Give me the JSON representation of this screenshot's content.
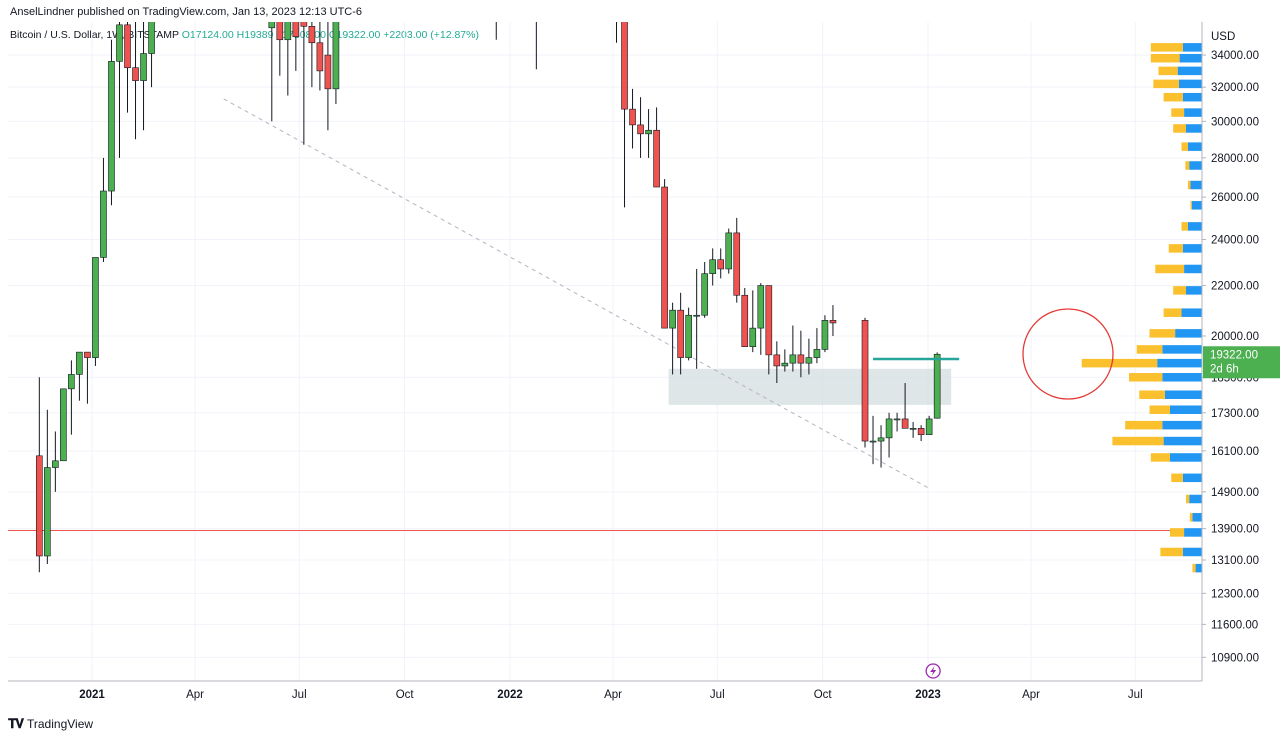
{
  "header": {
    "publisher": "AnselLindner published on TradingView.com, Jan 13, 2023 12:13 UTC-6",
    "symbol": "Bitcoin / U.S. Dollar, 1W, BITSTAMP",
    "open": "O17124.00",
    "high": "H19389",
    "low": "L17108.00",
    "close": "C19322.00",
    "change": "+2203.00 (+12.87%)"
  },
  "footer": {
    "brand": "TradingView"
  },
  "price_badge": {
    "price": "19322.00",
    "countdown": "2d 6h"
  },
  "currency": "USD",
  "colors": {
    "up": "#4caf50",
    "down": "#ef5350",
    "volume_up": "#2196f3",
    "volume_down": "#fbc02d",
    "support_line": "#ef5350",
    "current_line": "#26a69a",
    "zone": "#d1dbde",
    "circle": "#e53935",
    "badge": "#4caf50"
  },
  "chart_data": {
    "type": "candlestick",
    "symbol": "Bitcoin / U.S. Dollar",
    "interval": "1W",
    "exchange": "BITSTAMP",
    "scale": "log",
    "ylim": [
      10200,
      37500
    ],
    "y_ticks": [
      "34000.00",
      "32000.00",
      "30000.00",
      "28000.00",
      "26000.00",
      "24000.00",
      "22000.00",
      "20000.00",
      "18500.00",
      "17300.00",
      "16100.00",
      "14900.00",
      "13900.00",
      "13100.00",
      "12300.00",
      "11600.00",
      "10900.00"
    ],
    "x_ticks": [
      {
        "label": "2021",
        "bold": true
      },
      {
        "label": "Apr",
        "bold": false
      },
      {
        "label": "Jul",
        "bold": false
      },
      {
        "label": "Oct",
        "bold": false
      },
      {
        "label": "2022",
        "bold": true
      },
      {
        "label": "Apr",
        "bold": false
      },
      {
        "label": "Jul",
        "bold": false
      },
      {
        "label": "Oct",
        "bold": false
      },
      {
        "label": "2023",
        "bold": true
      },
      {
        "label": "Apr",
        "bold": false
      },
      {
        "label": "Jul",
        "bold": false
      }
    ],
    "candles": [
      {
        "date": "2020-11-16",
        "o": 15950,
        "h": 18500,
        "l": 12800,
        "c": 13200
      },
      {
        "date": "2020-11-23",
        "o": 13200,
        "h": 17400,
        "l": 13000,
        "c": 15600
      },
      {
        "date": "2020-11-30",
        "o": 15600,
        "h": 16700,
        "l": 14900,
        "c": 15800
      },
      {
        "date": "2020-12-07",
        "o": 15800,
        "h": 18100,
        "l": 16000,
        "c": 18100
      },
      {
        "date": "2020-12-14",
        "o": 18100,
        "h": 19100,
        "l": 16600,
        "c": 18600
      },
      {
        "date": "2020-12-21",
        "o": 18600,
        "h": 19400,
        "l": 17700,
        "c": 19400
      },
      {
        "date": "2020-12-28",
        "o": 19400,
        "h": 19400,
        "l": 17600,
        "c": 19200
      },
      {
        "date": "2021-01-04",
        "o": 19200,
        "h": 23200,
        "l": 18900,
        "c": 23200
      },
      {
        "date": "2021-01-11",
        "o": 23200,
        "h": 28000,
        "l": 23000,
        "c": 26300
      },
      {
        "date": "2021-01-18",
        "o": 26300,
        "h": 35000,
        "l": 25600,
        "c": 33600
      },
      {
        "date": "2021-01-25",
        "o": 33600,
        "h": 38000,
        "l": 28000,
        "c": 36000
      },
      {
        "date": "2021-02-01",
        "o": 36000,
        "h": 38000,
        "l": 30500,
        "c": 33200
      },
      {
        "date": "2021-02-08",
        "o": 33200,
        "h": 38000,
        "l": 29000,
        "c": 32400
      },
      {
        "date": "2021-02-15",
        "o": 32400,
        "h": 38000,
        "l": 29500,
        "c": 34100
      },
      {
        "date": "2021-02-22",
        "o": 34100,
        "h": 38000,
        "l": 32000,
        "c": 38000
      },
      {
        "date": "2021-06-07",
        "o": 35800,
        "h": 38000,
        "l": 30000,
        "c": 36500
      },
      {
        "date": "2021-06-14",
        "o": 36500,
        "h": 38000,
        "l": 32700,
        "c": 35000
      },
      {
        "date": "2021-06-21",
        "o": 35000,
        "h": 38000,
        "l": 31500,
        "c": 36800
      },
      {
        "date": "2021-06-28",
        "o": 36800,
        "h": 38000,
        "l": 33000,
        "c": 35200
      },
      {
        "date": "2021-07-05",
        "o": 37000,
        "h": 38000,
        "l": 28700,
        "c": 35900
      },
      {
        "date": "2021-07-12",
        "o": 35900,
        "h": 38000,
        "l": 32000,
        "c": 34800
      },
      {
        "date": "2021-07-19",
        "o": 34800,
        "h": 38000,
        "l": 31800,
        "c": 33000
      },
      {
        "date": "2021-07-26",
        "o": 34000,
        "h": 38000,
        "l": 29500,
        "c": 31900
      },
      {
        "date": "2021-08-02",
        "o": 31900,
        "h": 38000,
        "l": 31000,
        "c": 38000
      },
      {
        "date": "2021-12-20",
        "o": 38000,
        "h": 38000,
        "l": 35000,
        "c": 38000
      },
      {
        "date": "2022-01-24",
        "o": 38000,
        "h": 38000,
        "l": 33100,
        "c": 38000
      },
      {
        "date": "2022-04-04",
        "o": 38000,
        "h": 38000,
        "l": 34800,
        "c": 36500
      },
      {
        "date": "2022-04-11",
        "o": 36500,
        "h": 36500,
        "l": 25500,
        "c": 30700
      },
      {
        "date": "2022-04-18",
        "o": 30700,
        "h": 31900,
        "l": 28500,
        "c": 29800
      },
      {
        "date": "2022-04-25",
        "o": 29800,
        "h": 31400,
        "l": 28000,
        "c": 29300
      },
      {
        "date": "2022-05-02",
        "o": 29300,
        "h": 30700,
        "l": 28000,
        "c": 29500
      },
      {
        "date": "2022-05-09",
        "o": 29500,
        "h": 30800,
        "l": 26500,
        "c": 26500
      },
      {
        "date": "2022-05-16",
        "o": 26500,
        "h": 26900,
        "l": 20300,
        "c": 20300
      },
      {
        "date": "2022-05-23",
        "o": 20300,
        "h": 21300,
        "l": 18600,
        "c": 21000
      },
      {
        "date": "2022-05-30",
        "o": 21000,
        "h": 21700,
        "l": 18600,
        "c": 19200
      },
      {
        "date": "2022-06-06",
        "o": 19200,
        "h": 21100,
        "l": 19100,
        "c": 20800
      },
      {
        "date": "2022-06-13",
        "o": 20800,
        "h": 22700,
        "l": 18800,
        "c": 20800
      },
      {
        "date": "2022-06-20",
        "o": 20800,
        "h": 23000,
        "l": 20700,
        "c": 22500
      },
      {
        "date": "2022-06-27",
        "o": 22500,
        "h": 23600,
        "l": 22000,
        "c": 23100
      },
      {
        "date": "2022-07-04",
        "o": 23100,
        "h": 23600,
        "l": 22300,
        "c": 22700
      },
      {
        "date": "2022-07-11",
        "o": 22700,
        "h": 24500,
        "l": 22500,
        "c": 24300
      },
      {
        "date": "2022-07-18",
        "o": 24300,
        "h": 25000,
        "l": 21300,
        "c": 21600
      },
      {
        "date": "2022-07-25",
        "o": 21600,
        "h": 21900,
        "l": 19600,
        "c": 19600
      },
      {
        "date": "2022-08-01",
        "o": 19600,
        "h": 21800,
        "l": 19400,
        "c": 20300
      },
      {
        "date": "2022-08-08",
        "o": 20300,
        "h": 22100,
        "l": 19300,
        "c": 22000
      },
      {
        "date": "2022-08-15",
        "o": 22000,
        "h": 22000,
        "l": 18600,
        "c": 19300
      },
      {
        "date": "2022-08-22",
        "o": 19300,
        "h": 19800,
        "l": 18300,
        "c": 18900
      },
      {
        "date": "2022-08-29",
        "o": 18900,
        "h": 19500,
        "l": 18700,
        "c": 19000
      },
      {
        "date": "2022-09-05",
        "o": 19000,
        "h": 20400,
        "l": 18700,
        "c": 19300
      },
      {
        "date": "2022-09-12",
        "o": 19300,
        "h": 20200,
        "l": 18500,
        "c": 19000
      },
      {
        "date": "2022-09-19",
        "o": 19000,
        "h": 19900,
        "l": 18600,
        "c": 19200
      },
      {
        "date": "2022-09-26",
        "o": 19200,
        "h": 20300,
        "l": 19000,
        "c": 19500
      },
      {
        "date": "2022-10-03",
        "o": 19500,
        "h": 20800,
        "l": 19400,
        "c": 20600
      },
      {
        "date": "2022-10-10",
        "o": 20600,
        "h": 21200,
        "l": 20000,
        "c": 20500
      },
      {
        "date": "2022-11-07",
        "o": 20600,
        "h": 20700,
        "l": 16200,
        "c": 16400
      },
      {
        "date": "2022-11-14",
        "o": 16400,
        "h": 17200,
        "l": 15700,
        "c": 16400
      },
      {
        "date": "2022-11-21",
        "o": 16400,
        "h": 16900,
        "l": 15600,
        "c": 16500
      },
      {
        "date": "2022-11-28",
        "o": 16500,
        "h": 17300,
        "l": 15900,
        "c": 17100
      },
      {
        "date": "2022-12-05",
        "o": 17100,
        "h": 17300,
        "l": 16700,
        "c": 17100
      },
      {
        "date": "2022-12-12",
        "o": 17100,
        "h": 18300,
        "l": 16800,
        "c": 16800
      },
      {
        "date": "2022-12-19",
        "o": 16800,
        "h": 17000,
        "l": 16500,
        "c": 16800
      },
      {
        "date": "2022-12-26",
        "o": 16800,
        "h": 16900,
        "l": 16400,
        "c": 16600
      },
      {
        "date": "2023-01-02",
        "o": 16600,
        "h": 17200,
        "l": 16600,
        "c": 17100
      },
      {
        "date": "2023-01-09",
        "o": 17124,
        "h": 19389,
        "l": 17108,
        "c": 19322
      }
    ],
    "annotations": [
      {
        "type": "horizontal_line",
        "price": 13850,
        "color": "#ef5350"
      },
      {
        "type": "horizontal_segment",
        "price": 19150,
        "color": "#26a69a",
        "from": "2022-11-14",
        "to": "2023-01-16"
      },
      {
        "type": "rectangle_zone",
        "price_high": 18800,
        "price_low": 17560,
        "from": "2022-05-23",
        "to": "2023-01-16"
      },
      {
        "type": "dashed_trendline",
        "from_date": "2021-04-26",
        "from_price": 31300,
        "to_date": "2023-01-02",
        "to_price": 15000
      },
      {
        "type": "circle_highlight",
        "note": "volume profile peak near current price"
      },
      {
        "type": "event_icon",
        "date": "2023-01-02",
        "icon": "lightning-icon"
      }
    ],
    "volume_profile": [
      {
        "price": 34500,
        "up": 30,
        "down": 50
      },
      {
        "price": 33800,
        "up": 35,
        "down": 45
      },
      {
        "price": 33000,
        "up": 38,
        "down": 30
      },
      {
        "price": 32200,
        "up": 36,
        "down": 40
      },
      {
        "price": 31400,
        "up": 30,
        "down": 30
      },
      {
        "price": 30500,
        "up": 28,
        "down": 20
      },
      {
        "price": 29600,
        "up": 25,
        "down": 20
      },
      {
        "price": 28600,
        "up": 22,
        "down": 10
      },
      {
        "price": 27600,
        "up": 20,
        "down": 6
      },
      {
        "price": 26600,
        "up": 18,
        "down": 4
      },
      {
        "price": 25600,
        "up": 16,
        "down": 2
      },
      {
        "price": 24600,
        "up": 22,
        "down": 10
      },
      {
        "price": 23600,
        "up": 30,
        "down": 22
      },
      {
        "price": 22700,
        "up": 28,
        "down": 45
      },
      {
        "price": 21800,
        "up": 25,
        "down": 20
      },
      {
        "price": 20900,
        "up": 32,
        "down": 28
      },
      {
        "price": 20100,
        "up": 42,
        "down": 40
      },
      {
        "price": 19500,
        "up": 62,
        "down": 40
      },
      {
        "price": 19000,
        "up": 70,
        "down": 118
      },
      {
        "price": 18500,
        "up": 62,
        "down": 52
      },
      {
        "price": 17900,
        "up": 58,
        "down": 40
      },
      {
        "price": 17400,
        "up": 50,
        "down": 32
      },
      {
        "price": 16900,
        "up": 62,
        "down": 58
      },
      {
        "price": 16400,
        "up": 60,
        "down": 80
      },
      {
        "price": 15900,
        "up": 50,
        "down": 30
      },
      {
        "price": 15300,
        "up": 30,
        "down": 18
      },
      {
        "price": 14700,
        "up": 20,
        "down": 5
      },
      {
        "price": 14200,
        "up": 15,
        "down": 4
      },
      {
        "price": 13800,
        "up": 28,
        "down": 22
      },
      {
        "price": 13300,
        "up": 30,
        "down": 35
      },
      {
        "price": 12900,
        "up": 10,
        "down": 5
      }
    ]
  }
}
